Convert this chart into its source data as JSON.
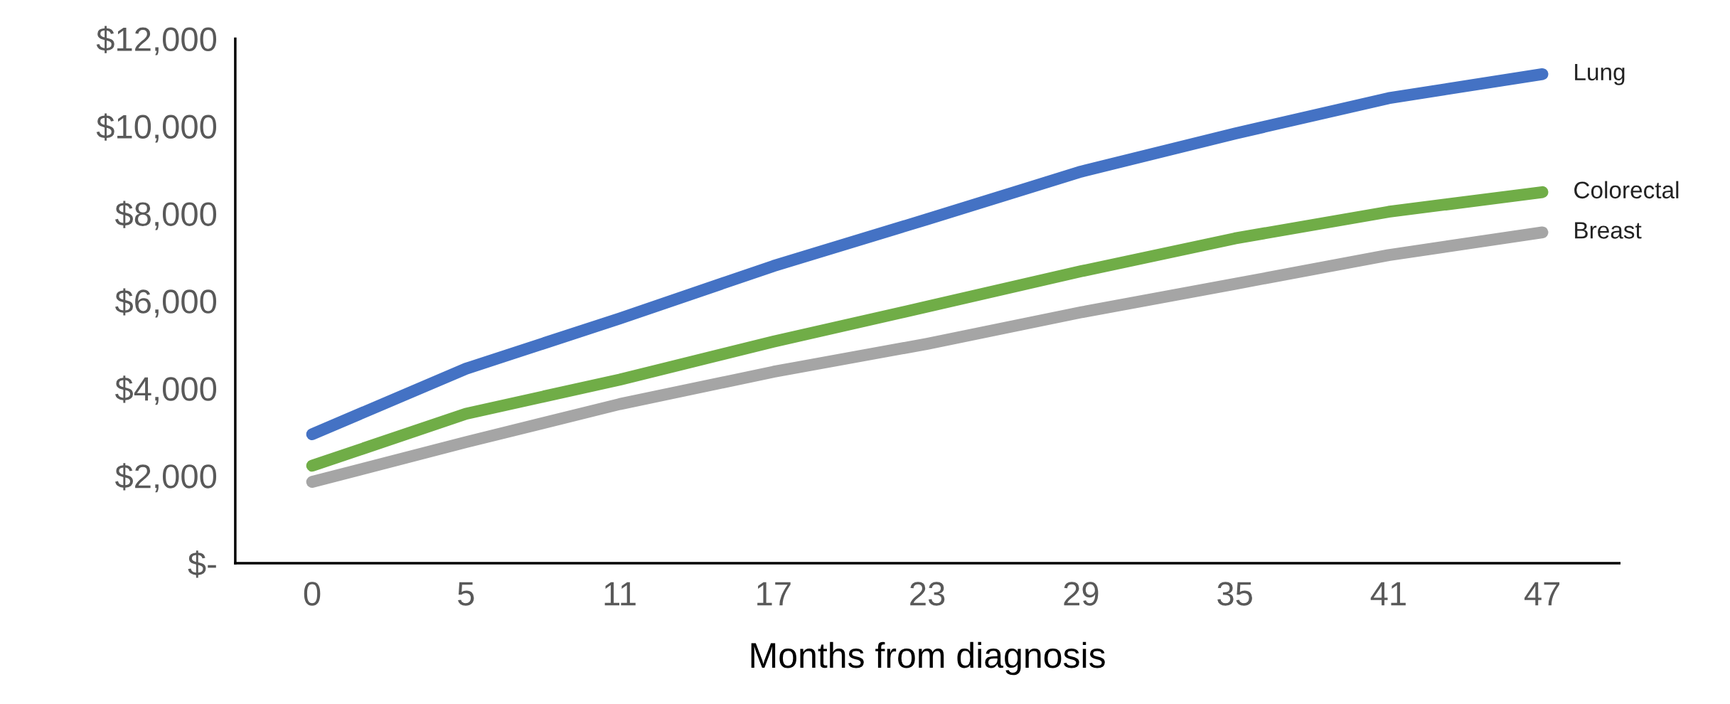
{
  "chart_data": {
    "type": "line",
    "xlabel": "Months from diagnosis",
    "categories": [
      "0",
      "5",
      "11",
      "17",
      "23",
      "29",
      "35",
      "41",
      "47"
    ],
    "ylim": [
      0,
      12000
    ],
    "yticks": [
      {
        "value": 0,
        "label": "$-"
      },
      {
        "value": 2000,
        "label": "$2,000"
      },
      {
        "value": 4000,
        "label": "$4,000"
      },
      {
        "value": 6000,
        "label": "$6,000"
      },
      {
        "value": 8000,
        "label": "$8,000"
      },
      {
        "value": 10000,
        "label": "$10,000"
      },
      {
        "value": 12000,
        "label": "$12,000"
      }
    ],
    "grid": false,
    "legend": false,
    "line_style": "solid",
    "series": [
      {
        "name": "Lung",
        "color": "#4472c4",
        "values": [
          2950,
          4450,
          5600,
          6800,
          7870,
          8960,
          9830,
          10640,
          11190
        ]
      },
      {
        "name": "Colorectal",
        "color": "#70ad47",
        "values": [
          2230,
          3420,
          4200,
          5070,
          5870,
          6680,
          7430,
          8040,
          8490
        ]
      },
      {
        "name": "Breast",
        "color": "#a5a5a5",
        "values": [
          1860,
          2770,
          3640,
          4380,
          5020,
          5740,
          6390,
          7050,
          7570
        ]
      }
    ]
  }
}
